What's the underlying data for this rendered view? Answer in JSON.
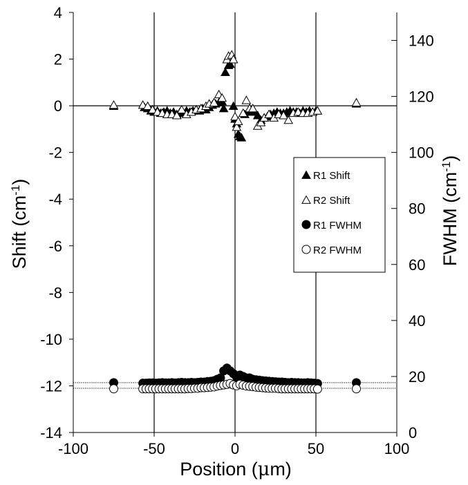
{
  "chart_data": {
    "type": "scatter",
    "xlabel": {
      "main": "Position (",
      "mu": "μ",
      "unit": "m)"
    },
    "ylabel_left": {
      "main": "Shift (cm",
      "sup": "-1",
      "close": ")"
    },
    "ylabel_right": {
      "main": "FWHM (cm",
      "sup": "-1",
      "close": ")"
    },
    "xlim": [
      -100,
      100
    ],
    "ylim_left": [
      -14,
      4
    ],
    "ylim_right": [
      0,
      150
    ],
    "x_ticks": [
      "-100",
      "-50",
      "0",
      "50",
      "100"
    ],
    "y_left_ticks": [
      "-14",
      "-12",
      "-10",
      "-8",
      "-6",
      "-4",
      "-2",
      "0",
      "2",
      "4"
    ],
    "y_right_ticks": [
      "0",
      "20",
      "40",
      "60",
      "80",
      "100",
      "120",
      "140"
    ],
    "reference_lines": {
      "vertical_x": [
        -50,
        0,
        50
      ],
      "horizontal_shift_zero": 0,
      "horizontal_fwhm_dotted": [
        17.8,
        15.8
      ]
    },
    "series": [
      {
        "name": "R1 Shift",
        "axis": "left",
        "marker": "triangle-filled",
        "points": [
          [
            -75,
            0.0
          ],
          [
            -56,
            -0.05
          ],
          [
            -54,
            -0.1
          ],
          [
            -52,
            -0.2
          ],
          [
            -50,
            -0.25
          ],
          [
            -48,
            -0.2
          ],
          [
            -46,
            -0.3
          ],
          [
            -44,
            -0.25
          ],
          [
            -42,
            -0.2
          ],
          [
            -40,
            -0.3
          ],
          [
            -38,
            -0.25
          ],
          [
            -36,
            -0.35
          ],
          [
            -34,
            -0.25
          ],
          [
            -32,
            -0.3
          ],
          [
            -30,
            -0.2
          ],
          [
            -28,
            -0.25
          ],
          [
            -26,
            -0.2
          ],
          [
            -24,
            -0.15
          ],
          [
            -22,
            -0.2
          ],
          [
            -20,
            -0.1
          ],
          [
            -18,
            -0.15
          ],
          [
            -16,
            -0.05
          ],
          [
            -14,
            0.05
          ],
          [
            -12,
            0.1
          ],
          [
            -10,
            0.15
          ],
          [
            -8,
            0.2
          ],
          [
            -7,
            -0.1
          ],
          [
            -6,
            1.45
          ],
          [
            -4,
            1.75
          ],
          [
            -3,
            1.8
          ],
          [
            -1,
            0.0
          ],
          [
            0,
            -0.55
          ],
          [
            1,
            -0.75
          ],
          [
            2,
            -1.2
          ],
          [
            3,
            -1.3
          ],
          [
            4,
            -1.35
          ],
          [
            6,
            -0.35
          ],
          [
            8,
            -0.25
          ],
          [
            10,
            -0.2
          ],
          [
            12,
            -0.25
          ],
          [
            14,
            -0.4
          ],
          [
            16,
            -0.6
          ],
          [
            18,
            -0.5
          ],
          [
            20,
            -0.45
          ],
          [
            22,
            -0.35
          ],
          [
            24,
            -0.3
          ],
          [
            26,
            -0.25
          ],
          [
            28,
            -0.3
          ],
          [
            30,
            -0.3
          ],
          [
            32,
            -0.25
          ],
          [
            34,
            -0.2
          ],
          [
            36,
            -0.25
          ],
          [
            38,
            -0.25
          ],
          [
            40,
            -0.3
          ],
          [
            42,
            -0.2
          ],
          [
            44,
            -0.25
          ],
          [
            46,
            -0.2
          ],
          [
            48,
            -0.25
          ],
          [
            50,
            -0.2
          ],
          [
            75,
            0.1
          ]
        ]
      },
      {
        "name": "R2 Shift",
        "axis": "left",
        "marker": "triangle-open",
        "points": [
          [
            -75,
            0.05
          ],
          [
            -57,
            0.05
          ],
          [
            -54,
            0.0
          ],
          [
            -51,
            -0.15
          ],
          [
            -48,
            -0.25
          ],
          [
            -45,
            -0.3
          ],
          [
            -42,
            -0.35
          ],
          [
            -39,
            -0.35
          ],
          [
            -36,
            -0.4
          ],
          [
            -33,
            -0.15
          ],
          [
            -30,
            -0.35
          ],
          [
            -27,
            -0.25
          ],
          [
            -24,
            -0.15
          ],
          [
            -21,
            -0.1
          ],
          [
            -18,
            -0.0
          ],
          [
            -16,
            0.1
          ],
          [
            -13,
            0.15
          ],
          [
            -10,
            0.5
          ],
          [
            -8,
            0.35
          ],
          [
            -5,
            2.0
          ],
          [
            -4,
            2.15
          ],
          [
            -2,
            2.2
          ],
          [
            -1,
            2.0
          ],
          [
            0,
            -0.45
          ],
          [
            1,
            -0.9
          ],
          [
            2,
            -0.65
          ],
          [
            5,
            -0.3
          ],
          [
            7,
            0.25
          ],
          [
            9,
            -0.1
          ],
          [
            11,
            -0.1
          ],
          [
            14,
            -0.85
          ],
          [
            16,
            -0.7
          ],
          [
            18,
            -0.5
          ],
          [
            21,
            -0.35
          ],
          [
            24,
            -0.5
          ],
          [
            27,
            -0.35
          ],
          [
            30,
            -0.4
          ],
          [
            33,
            -0.6
          ],
          [
            36,
            -0.3
          ],
          [
            39,
            -0.25
          ],
          [
            42,
            -0.3
          ],
          [
            45,
            -0.3
          ],
          [
            48,
            -0.25
          ],
          [
            51,
            -0.2
          ],
          [
            75,
            0.15
          ]
        ]
      },
      {
        "name": "R1 FWHM",
        "axis": "right",
        "marker": "circle-filled",
        "points": [
          [
            -75,
            17.8
          ],
          [
            -57,
            17.6
          ],
          [
            -55,
            17.6
          ],
          [
            -53,
            17.7
          ],
          [
            -51,
            17.7
          ],
          [
            -49,
            17.6
          ],
          [
            -47,
            17.7
          ],
          [
            -45,
            17.8
          ],
          [
            -43,
            17.7
          ],
          [
            -41,
            17.7
          ],
          [
            -39,
            17.8
          ],
          [
            -37,
            17.7
          ],
          [
            -35,
            17.8
          ],
          [
            -33,
            17.9
          ],
          [
            -31,
            17.8
          ],
          [
            -29,
            17.8
          ],
          [
            -27,
            17.9
          ],
          [
            -25,
            17.8
          ],
          [
            -23,
            17.9
          ],
          [
            -21,
            18.0
          ],
          [
            -19,
            18.0
          ],
          [
            -17,
            18.2
          ],
          [
            -15,
            18.3
          ],
          [
            -13,
            18.5
          ],
          [
            -11,
            19.0
          ],
          [
            -9,
            19.5
          ],
          [
            -7,
            22.0
          ],
          [
            -5,
            23.0
          ],
          [
            -3,
            22.0
          ],
          [
            -1,
            21.0
          ],
          [
            1,
            19.8
          ],
          [
            3,
            20.5
          ],
          [
            5,
            20.0
          ],
          [
            7,
            19.5
          ],
          [
            9,
            19.5
          ],
          [
            11,
            19.0
          ],
          [
            13,
            18.8
          ],
          [
            15,
            18.7
          ],
          [
            17,
            18.5
          ],
          [
            19,
            18.4
          ],
          [
            21,
            18.3
          ],
          [
            23,
            18.2
          ],
          [
            25,
            18.1
          ],
          [
            27,
            18.0
          ],
          [
            29,
            18.0
          ],
          [
            31,
            17.9
          ],
          [
            33,
            17.8
          ],
          [
            35,
            17.9
          ],
          [
            37,
            17.8
          ],
          [
            39,
            17.8
          ],
          [
            41,
            17.7
          ],
          [
            43,
            17.7
          ],
          [
            45,
            17.8
          ],
          [
            47,
            17.7
          ],
          [
            49,
            17.6
          ],
          [
            51,
            17.5
          ],
          [
            75,
            17.8
          ]
        ]
      },
      {
        "name": "R2 FWHM",
        "axis": "right",
        "marker": "circle-open",
        "points": [
          [
            -75,
            15.6
          ],
          [
            -57,
            15.6
          ],
          [
            -55,
            15.6
          ],
          [
            -53,
            15.6
          ],
          [
            -51,
            15.6
          ],
          [
            -49,
            15.6
          ],
          [
            -47,
            15.6
          ],
          [
            -45,
            15.6
          ],
          [
            -43,
            15.6
          ],
          [
            -41,
            15.6
          ],
          [
            -39,
            15.6
          ],
          [
            -37,
            15.6
          ],
          [
            -35,
            15.6
          ],
          [
            -33,
            15.6
          ],
          [
            -31,
            15.6
          ],
          [
            -29,
            15.7
          ],
          [
            -27,
            15.7
          ],
          [
            -25,
            15.8
          ],
          [
            -23,
            15.8
          ],
          [
            -21,
            16.0
          ],
          [
            -19,
            16.0
          ],
          [
            -17,
            16.1
          ],
          [
            -15,
            16.2
          ],
          [
            -13,
            16.3
          ],
          [
            -11,
            16.6
          ],
          [
            -9,
            16.8
          ],
          [
            -7,
            17.0
          ],
          [
            -5,
            17.2
          ],
          [
            -3,
            17.5
          ],
          [
            -1,
            17.0
          ],
          [
            1,
            16.7
          ],
          [
            3,
            17.2
          ],
          [
            5,
            16.9
          ],
          [
            7,
            16.6
          ],
          [
            9,
            16.5
          ],
          [
            11,
            16.4
          ],
          [
            13,
            16.2
          ],
          [
            15,
            16.1
          ],
          [
            17,
            16.0
          ],
          [
            19,
            15.9
          ],
          [
            21,
            15.8
          ],
          [
            23,
            15.8
          ],
          [
            25,
            15.8
          ],
          [
            27,
            15.7
          ],
          [
            29,
            15.6
          ],
          [
            31,
            15.6
          ],
          [
            33,
            15.6
          ],
          [
            35,
            15.6
          ],
          [
            37,
            15.6
          ],
          [
            39,
            15.6
          ],
          [
            41,
            15.6
          ],
          [
            43,
            15.6
          ],
          [
            45,
            15.6
          ],
          [
            47,
            15.6
          ],
          [
            49,
            15.6
          ],
          [
            51,
            15.5
          ],
          [
            75,
            15.6
          ]
        ]
      }
    ],
    "legend": {
      "position": "right-middle",
      "entries": [
        {
          "label": "R1 Shift",
          "marker": "triangle-filled"
        },
        {
          "label": "R2 Shift",
          "marker": "triangle-open"
        },
        {
          "label": "R1 FWHM",
          "marker": "circle-filled"
        },
        {
          "label": "R2 FWHM",
          "marker": "circle-open"
        }
      ]
    }
  }
}
